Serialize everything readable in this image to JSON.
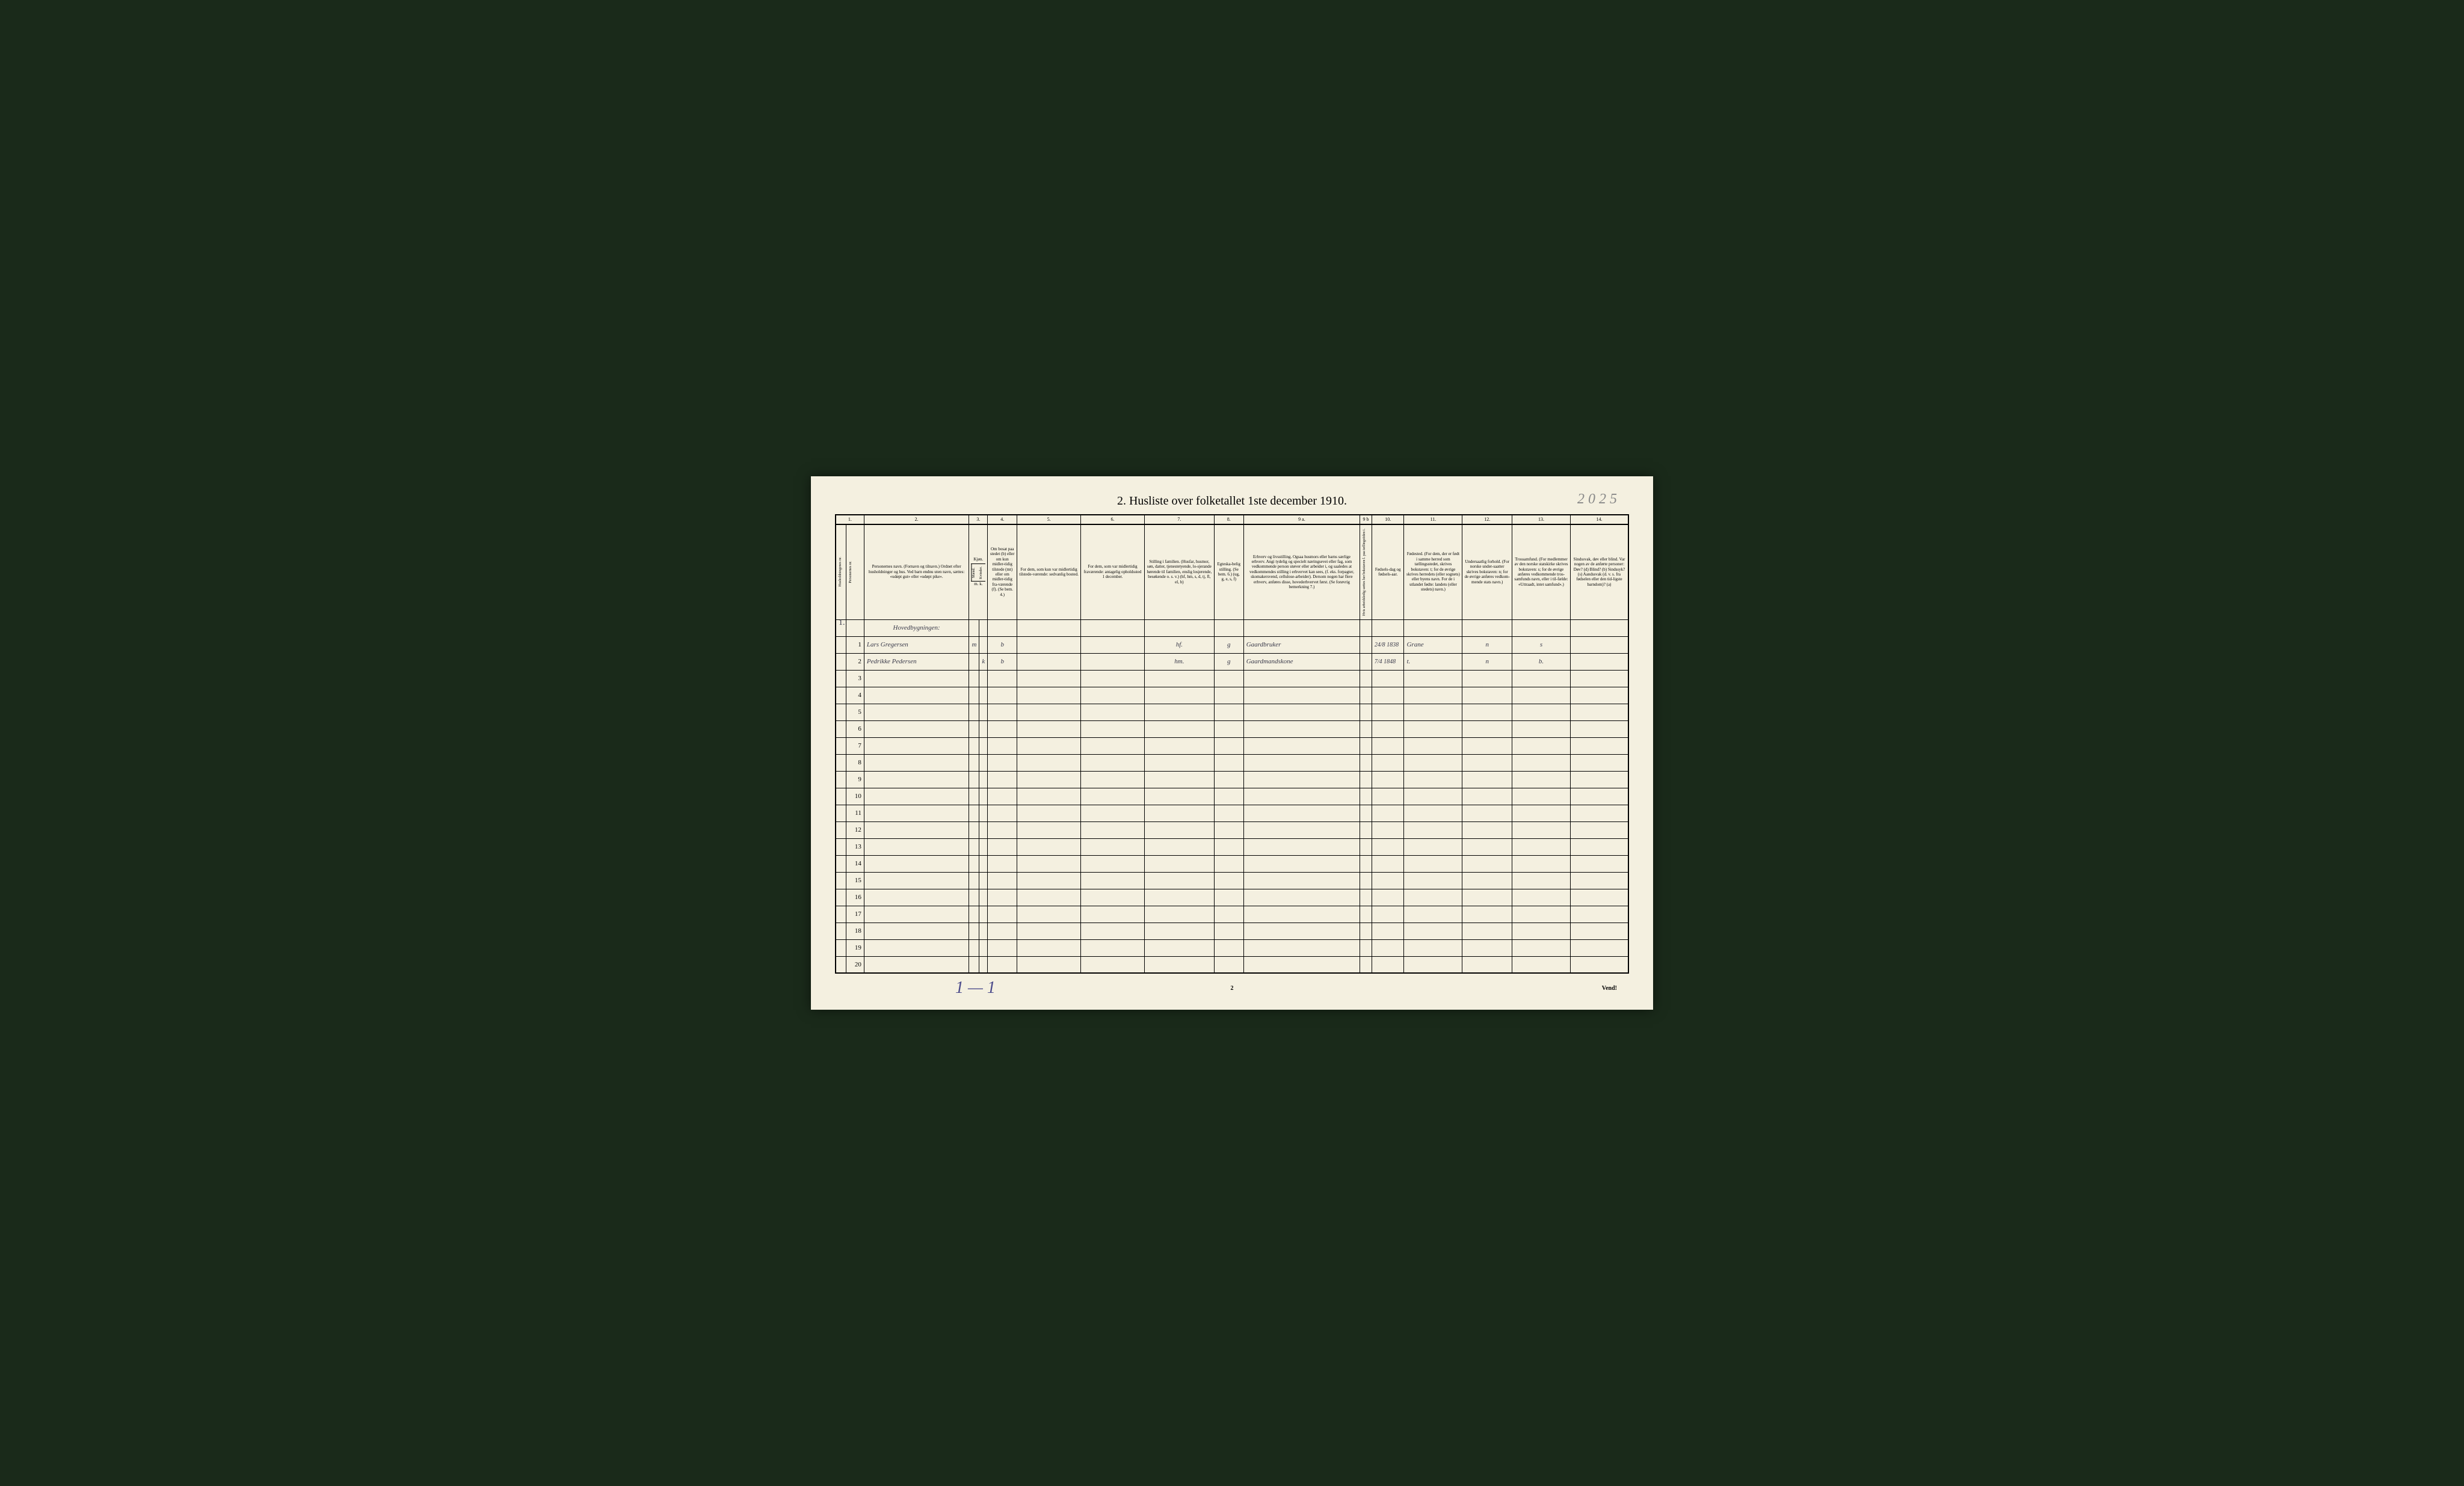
{
  "document": {
    "background_color": "#f4f0e0",
    "border_color": "#000000",
    "text_color": "#000000",
    "handwritten_color": "#3a3a4a"
  },
  "title": "2.   Husliste over folketallet 1ste december 1910.",
  "handwritten_top_right": "2 0 2 5",
  "left_margin_mark": "1.",
  "column_numbers": [
    "1.",
    "2.",
    "3.",
    "4.",
    "5.",
    "6.",
    "7.",
    "8.",
    "9 a.",
    "9 b",
    "10.",
    "11.",
    "12.",
    "13.",
    "14."
  ],
  "headers": {
    "col1a": "Husholdningenes nr.",
    "col1b": "Personernes nr.",
    "col2": "Personernes navn.\n(Fornavn og tilnavn.)\nOrdnet efter husholdninger og hus.\nVed barn endnu uten navn, sættes: «udøpt gut» eller «udøpt pike».",
    "col3_top": "Kjøn.",
    "col3a": "Mænd.",
    "col3b": "Kvinder.",
    "col3_bottom": "m.  k.",
    "col4": "Om bosat paa stedet (b) eller om kun midler-tidig tilstede (mt) eller om midler-tidig fra-værende (f).\n(Se bem. 4.)",
    "col5": "For dem, som kun var midlertidig tilstede-værende:\nsedvanlig bosted.",
    "col6": "For dem, som var midlertidig fraværende:\nantagelig opholdssted 1 december.",
    "col7": "Stilling i familien.\n(Husfar, husmor, søn, datter, tjenestetyende, lo-sjerande hørende til familien, enslig losjerende, besøkende o. s. v.)\n(hf, hm, s, d, tj, fl, el, b)",
    "col8": "Egteska-belig stilling.\n(Se bem. 6.)\n(ug, g, e, s, f)",
    "col9a": "Erhverv og livsstilling.\nOgsaa husmors eller barns særlige erhverv.\nAngi tydelig og specielt næringsevei eller fag, som vedkommende person utøver eller arbeider i, og saaledes at vedkommendes stilling i erhvervet kan sees, (f. eks. forpagter, skomakersvend, cellulose-arbeider). Dersom nogen har flere erhverv, anføres disse, hovederhvervet først.\n(Se forøvrig bemerkning 7.)",
    "col9b": "Hvis arbeidsledig sættes her bokstaven l.\npaa tællingstiden i.",
    "col10": "Fødsels-dag og fødsels-aar.",
    "col11": "Fødested.\n(For dem, der er født i samme herred som tællingsstedet, skrives bokstaven: t; for de øvrige skrives herredets (eller sognets) eller byens navn.\nFor de i utlandet fødte: landets (eller stedets) navn.)",
    "col12": "Undersaatlig forhold.\n(For norske under-saatter skrives bokstaven: n; for de øvrige anføres vedkom-mende stats navn.)",
    "col13": "Trossamfund.\n(For medlemmer av den norske statskirke skrives bokstaven: s; for de øvrige anføres vedkommende tros-samfunds navn, eller i til-fælde: «Uttraadt, intet samfund».)",
    "col14": "Sindssvak, døv eller blind.\nVar nogen av de anførte personer:\nDøv?       (d)\nBlind?     (b)\nSindssyk? (s)\nAandssvak (d. v. s. fra fødselen eller den tid-ligste barndom)? (a)"
  },
  "section_label": "Hovedbygningen:",
  "rows": [
    {
      "num": "1",
      "name": "Lars Gregersen",
      "sex_m": "m",
      "sex_k": "",
      "bosat": "b",
      "col5": "",
      "col6": "",
      "stilling": "hf.",
      "egte": "g",
      "erhverv": "Gaardbruker",
      "col9b": "",
      "fodsels": "24/8 1838",
      "fodested": "Grane",
      "undersaat": "n",
      "tros": "s",
      "col14": ""
    },
    {
      "num": "2",
      "name": "Pedrikke Pedersen",
      "sex_m": "",
      "sex_k": "k",
      "bosat": "b",
      "col5": "",
      "col6": "",
      "stilling": "hm.",
      "egte": "g",
      "erhverv": "Gaardmandskone",
      "col9b": "",
      "fodsels": "7/4 1848",
      "fodested": "t.",
      "undersaat": "n",
      "tros": "b.",
      "col14": ""
    }
  ],
  "empty_row_numbers": [
    "3",
    "4",
    "5",
    "6",
    "7",
    "8",
    "9",
    "10",
    "11",
    "12",
    "13",
    "14",
    "15",
    "16",
    "17",
    "18",
    "19",
    "20"
  ],
  "bottom": {
    "handwritten": "1 — 1",
    "page_number": "2",
    "vend": "Vend!"
  }
}
